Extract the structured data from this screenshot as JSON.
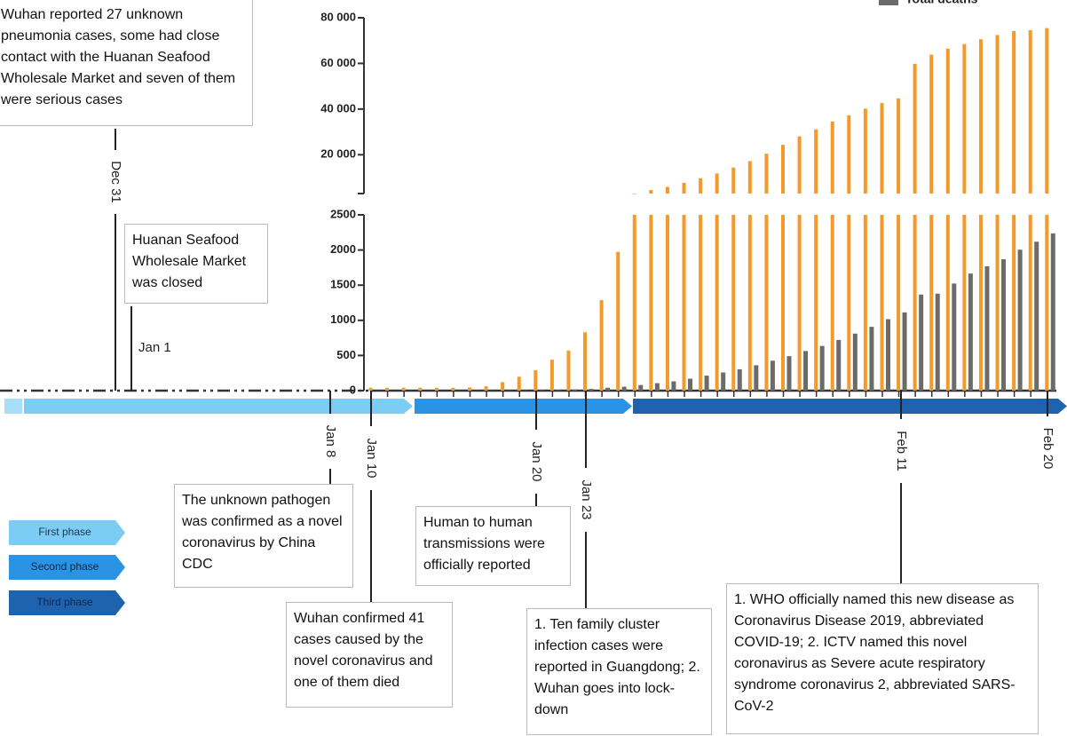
{
  "chart_data": {
    "type": "bar",
    "categories": [
      null,
      null,
      null,
      null,
      null,
      null,
      null,
      null,
      null,
      null,
      null,
      null,
      null,
      null,
      null,
      null,
      null,
      null,
      null,
      null,
      null,
      null,
      null,
      null,
      null,
      null,
      null,
      null,
      null,
      null,
      null,
      null,
      null,
      null,
      null,
      null,
      null,
      null,
      null,
      null,
      null,
      null
    ],
    "series": [
      {
        "color": "#f39a2b",
        "values": [
          41,
          41,
          41,
          41,
          41,
          41,
          45,
          62,
          121,
          198,
          291,
          440,
          571,
          830,
          1287,
          1975,
          2744,
          4515,
          5974,
          7711,
          9692,
          11791,
          14380,
          17205,
          20438,
          24324,
          28018,
          31161,
          34546,
          37198,
          40171,
          42638,
          44653,
          59804,
          63851,
          66492,
          68500,
          70548,
          72436,
          74185,
          74576,
          75465
        ]
      },
      {
        "name": "Total deaths",
        "color": "#6b6b6b",
        "values": [
          1,
          1,
          1,
          1,
          1,
          2,
          2,
          2,
          3,
          4,
          6,
          9,
          17,
          25,
          41,
          56,
          80,
          106,
          132,
          170,
          213,
          259,
          304,
          361,
          425,
          490,
          563,
          636,
          722,
          811,
          908,
          1016,
          1113,
          1367,
          1380,
          1523,
          1665,
          1770,
          1868,
          2004,
          2118,
          2236
        ]
      }
    ],
    "lower": {
      "ylim": [
        0,
        2500
      ],
      "yticks": [
        0,
        500,
        1000,
        1500,
        2000,
        2500
      ]
    },
    "upper": {
      "ylim": [
        3000,
        80000
      ],
      "yticks": [
        {
          "value": 20000,
          "label": "20 000"
        },
        {
          "value": 40000,
          "label": "40 000"
        },
        {
          "value": 60000,
          "label": "60 000"
        },
        {
          "value": 80000,
          "label": "80 000"
        }
      ]
    },
    "events": [
      {
        "date": "Dec 31",
        "text": "Wuhan reported 27 unknown pneumonia cases, some had close contact with the Huanan Seafood Wholesale Market and seven of them were serious cases"
      },
      {
        "date": "Jan 1",
        "text": "Huanan Seafood Wholesale Market was closed"
      },
      {
        "date": "Jan 8",
        "text": "The unknown pathogen was confirmed as a novel coronavirus by China CDC"
      },
      {
        "date": "Jan 10",
        "text": "Wuhan confirmed 41 cases caused by the novel coronavirus and one of them died"
      },
      {
        "date": "Jan 20",
        "text": "Human to human transmissions were officially reported"
      },
      {
        "date": "Jan 23",
        "text": "1. Ten family cluster infection cases were reported in Guangdong; 2. Wuhan goes into lock-down"
      },
      {
        "date": "Feb 11",
        "text": "1. WHO officially named this new disease as Coronavirus Disease 2019, abbreviated COVID-19; 2. ICTV named this novel coronavirus as Severe acute respiratory syndrome coronavirus 2, abbreviated SARS-CoV-2"
      },
      {
        "date": "Feb 20"
      }
    ],
    "phases": [
      {
        "name": "First phase",
        "color": "#7ccdf4"
      },
      {
        "name": "Second phase",
        "color": "#2b93e4"
      },
      {
        "name": "Third phase",
        "color": "#1f62ad"
      }
    ]
  }
}
